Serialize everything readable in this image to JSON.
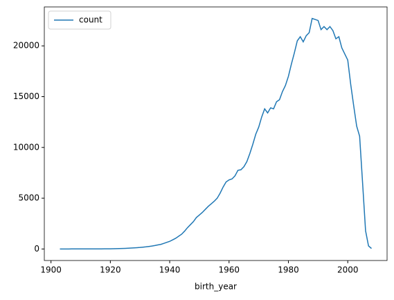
{
  "chart_data": {
    "type": "line",
    "xlabel": "birth_year",
    "x": [
      1903,
      1904,
      1905,
      1906,
      1907,
      1908,
      1909,
      1910,
      1911,
      1912,
      1913,
      1914,
      1915,
      1916,
      1917,
      1918,
      1919,
      1920,
      1921,
      1922,
      1923,
      1924,
      1925,
      1926,
      1927,
      1928,
      1929,
      1930,
      1931,
      1932,
      1933,
      1934,
      1935,
      1936,
      1937,
      1938,
      1939,
      1940,
      1941,
      1942,
      1943,
      1944,
      1945,
      1946,
      1947,
      1948,
      1949,
      1950,
      1951,
      1952,
      1953,
      1954,
      1955,
      1956,
      1957,
      1958,
      1959,
      1960,
      1961,
      1962,
      1963,
      1964,
      1965,
      1966,
      1967,
      1968,
      1969,
      1970,
      1971,
      1972,
      1973,
      1974,
      1975,
      1976,
      1977,
      1978,
      1979,
      1980,
      1981,
      1982,
      1983,
      1984,
      1985,
      1986,
      1987,
      1988,
      1989,
      1990,
      1991,
      1992,
      1993,
      1994,
      1995,
      1996,
      1997,
      1998,
      1999,
      2000,
      2001,
      2002,
      2003,
      2004,
      2005,
      2006,
      2007,
      2008
    ],
    "series": [
      {
        "name": "count",
        "color": "#1f77b4",
        "values": [
          2,
          2,
          3,
          3,
          4,
          4,
          5,
          5,
          6,
          6,
          7,
          8,
          9,
          10,
          12,
          14,
          16,
          20,
          25,
          30,
          40,
          50,
          60,
          75,
          90,
          110,
          130,
          150,
          180,
          210,
          250,
          290,
          340,
          400,
          450,
          550,
          650,
          750,
          900,
          1050,
          1250,
          1450,
          1750,
          2100,
          2400,
          2700,
          3100,
          3350,
          3600,
          3900,
          4200,
          4450,
          4700,
          5000,
          5500,
          6100,
          6600,
          6800,
          6900,
          7200,
          7750,
          7800,
          8100,
          8600,
          9400,
          10300,
          11300,
          12000,
          13000,
          13800,
          13400,
          13900,
          13800,
          14500,
          14700,
          15500,
          16100,
          17000,
          18200,
          19300,
          20500,
          20900,
          20400,
          21000,
          21300,
          22700,
          22600,
          22500,
          21600,
          21900,
          21600,
          21900,
          21500,
          20700,
          20900,
          19800,
          19200,
          18600,
          16200,
          14100,
          12100,
          11100,
          6500,
          1800,
          300,
          50
        ]
      }
    ],
    "xlim": [
      1897.75,
      2013.25
    ],
    "xticks": [
      1900,
      1920,
      1940,
      1960,
      1980,
      2000
    ],
    "ylim": [
      -1135,
      23835
    ],
    "yticks": [
      0,
      5000,
      10000,
      15000,
      20000
    ],
    "legend": "upper left"
  }
}
